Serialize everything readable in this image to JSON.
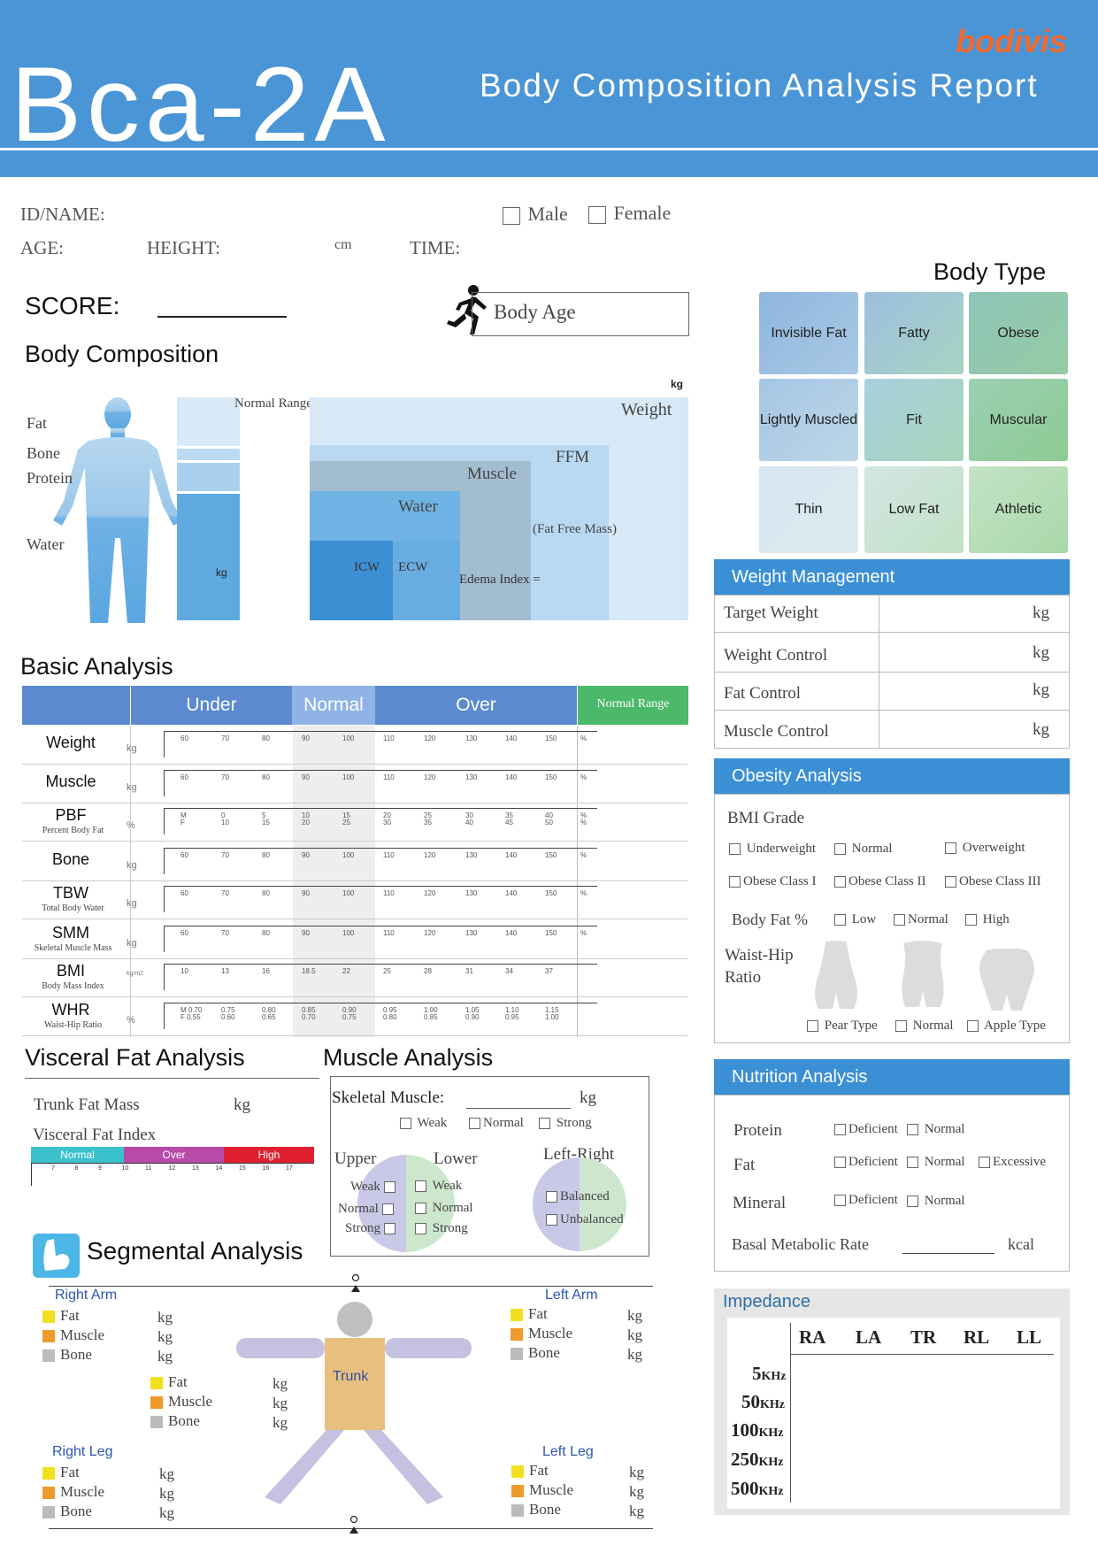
{
  "header": {
    "model": "Bca-2A",
    "brand": "bodivis",
    "title": "Body Composition Analysis Report"
  },
  "info": {
    "id_label": "ID/NAME:",
    "male": "Male",
    "female": "Female",
    "age_label": "AGE:",
    "height_label": "HEIGHT:",
    "height_unit": "cm",
    "time_label": "TIME:",
    "score_label": "SCORE:",
    "body_age": "Body Age"
  },
  "body_composition": {
    "title": "Body Composition",
    "labels": [
      "Fat",
      "Bone",
      "Protein",
      "Water"
    ],
    "kg": "kg",
    "kg_top": "kg",
    "normal_range": "Normal Range",
    "weight": "Weight",
    "ffm": "FFM",
    "muscle": "Muscle",
    "water": "Water",
    "fat_free_mass": "(Fat Free Mass)",
    "icw": "ICW",
    "ecw": "ECW",
    "edema": "Edema Index ="
  },
  "body_type": {
    "title": "Body Type",
    "cells": [
      "Invisible Fat",
      "Fatty",
      "Obese",
      "Lightly Muscled",
      "Fit",
      "Muscular",
      "Thin",
      "Low Fat",
      "Athletic"
    ]
  },
  "basic_analysis": {
    "title": "Basic Analysis",
    "under": "Under",
    "normal": "Normal",
    "over": "Over",
    "normal_range": "Normal Range",
    "rows": [
      {
        "name": "Weight",
        "sub": "",
        "unit": "kg",
        "ticks": [
          "60",
          "70",
          "80",
          "90",
          "100",
          "110",
          "120",
          "130",
          "140",
          "150",
          "%"
        ]
      },
      {
        "name": "Muscle",
        "sub": "",
        "unit": "kg",
        "ticks": [
          "60",
          "70",
          "80",
          "90",
          "100",
          "110",
          "120",
          "130",
          "140",
          "150",
          "%"
        ]
      },
      {
        "name": "PBF",
        "sub": "Percent Body Fat",
        "unit": "%",
        "ticks": [
          "M\nF",
          "0\n10",
          "5\n15",
          "10\n20",
          "15\n25",
          "20\n30",
          "25\n35",
          "30\n40",
          "35\n45",
          "40\n50",
          "%\n%"
        ]
      },
      {
        "name": "Bone",
        "sub": "",
        "unit": "kg",
        "ticks": [
          "60",
          "70",
          "80",
          "90",
          "100",
          "110",
          "120",
          "130",
          "140",
          "150",
          "%"
        ]
      },
      {
        "name": "TBW",
        "sub": "Total Body Water",
        "unit": "kg",
        "ticks": [
          "60",
          "70",
          "80",
          "90",
          "100",
          "110",
          "120",
          "130",
          "140",
          "150",
          "%"
        ]
      },
      {
        "name": "SMM",
        "sub": "Skeletal Muscle Mass",
        "unit": "kg",
        "ticks": [
          "60",
          "70",
          "80",
          "90",
          "100",
          "110",
          "120",
          "130",
          "140",
          "150",
          "%"
        ]
      },
      {
        "name": "BMI",
        "sub": "Body Mass Index",
        "unit": "kg/m2",
        "ticks": [
          "10",
          "13",
          "16",
          "18.5",
          "22",
          "25",
          "28",
          "31",
          "34",
          "37",
          ""
        ]
      },
      {
        "name": "WHR",
        "sub": "Waist-Hip Ratio",
        "unit": "%",
        "ticks": [
          "M 0.70\nF 0.55",
          "0.75\n0.60",
          "0.80\n0.65",
          "0.85\n0.70",
          "0.90\n0.75",
          "0.95\n0.80",
          "1.00\n0.85",
          "1.05\n0.90",
          "1.10\n0.95",
          "1.15\n1.00",
          ""
        ]
      }
    ]
  },
  "weight_management": {
    "title": "Weight Management",
    "rows": [
      "Target Weight",
      "Weight Control",
      "Fat Control",
      "Muscle Control"
    ],
    "unit": "kg"
  },
  "obesity": {
    "title": "Obesity Analysis",
    "bmi_grade": "BMI Grade",
    "bmi_opts": [
      "Underweight",
      "Normal",
      "Overweight",
      "Obese Class I",
      "Obese Class II",
      "Obese Class III"
    ],
    "body_fat": "Body Fat %",
    "bf_opts": [
      "Low",
      "Normal",
      "High"
    ],
    "whr": "Waist-Hip Ratio",
    "whr_opts": [
      "Pear Type",
      "Normal",
      "Apple Type"
    ]
  },
  "visceral": {
    "title": "Visceral Fat Analysis",
    "trunk_fat": "Trunk Fat Mass",
    "kg": "kg",
    "index": "Visceral Fat Index",
    "bands": [
      "Normal",
      "Over",
      "High"
    ],
    "ticks": [
      "7",
      "8",
      "9",
      "10",
      "11",
      "12",
      "13",
      "14",
      "15",
      "16",
      "17"
    ]
  },
  "muscle_analysis": {
    "title": "Muscle Analysis",
    "skeletal": "Skeletal Muscle:",
    "kg": "kg",
    "opts": [
      "Weak",
      "Normal",
      "Strong"
    ],
    "upper": "Upper",
    "lower": "Lower",
    "lr": "Left-Right",
    "lr_opts": [
      "Balanced",
      "Unbalanced"
    ]
  },
  "segmental": {
    "title": "Segmental Analysis",
    "right_arm": "Right Arm",
    "left_arm": "Left Arm",
    "right_leg": "Right Leg",
    "left_leg": "Left Leg",
    "trunk": "Trunk",
    "items": [
      "Fat",
      "Muscle",
      "Bone"
    ],
    "unit": "kg",
    "colors": {
      "fat": "#f2e020",
      "muscle": "#ef9a2c",
      "bone": "#bbbbbb"
    }
  },
  "nutrition": {
    "title": "Nutrition Analysis",
    "protein": "Protein",
    "fat": "Fat",
    "mineral": "Mineral",
    "deficient": "Deficient",
    "normal": "Normal",
    "excessive": "Excessive",
    "bmr": "Basal Metabolic Rate",
    "kcal": "kcal"
  },
  "impedance": {
    "title": "Impedance",
    "cols": [
      "RA",
      "LA",
      "TR",
      "RL",
      "LL"
    ],
    "freqs": [
      "5",
      "50",
      "100",
      "250",
      "500"
    ],
    "unit": "KHz"
  },
  "colors": {
    "header_blue": "#4a95d6",
    "accent_blue": "#3b8fd4",
    "green": "#4cb86a"
  }
}
